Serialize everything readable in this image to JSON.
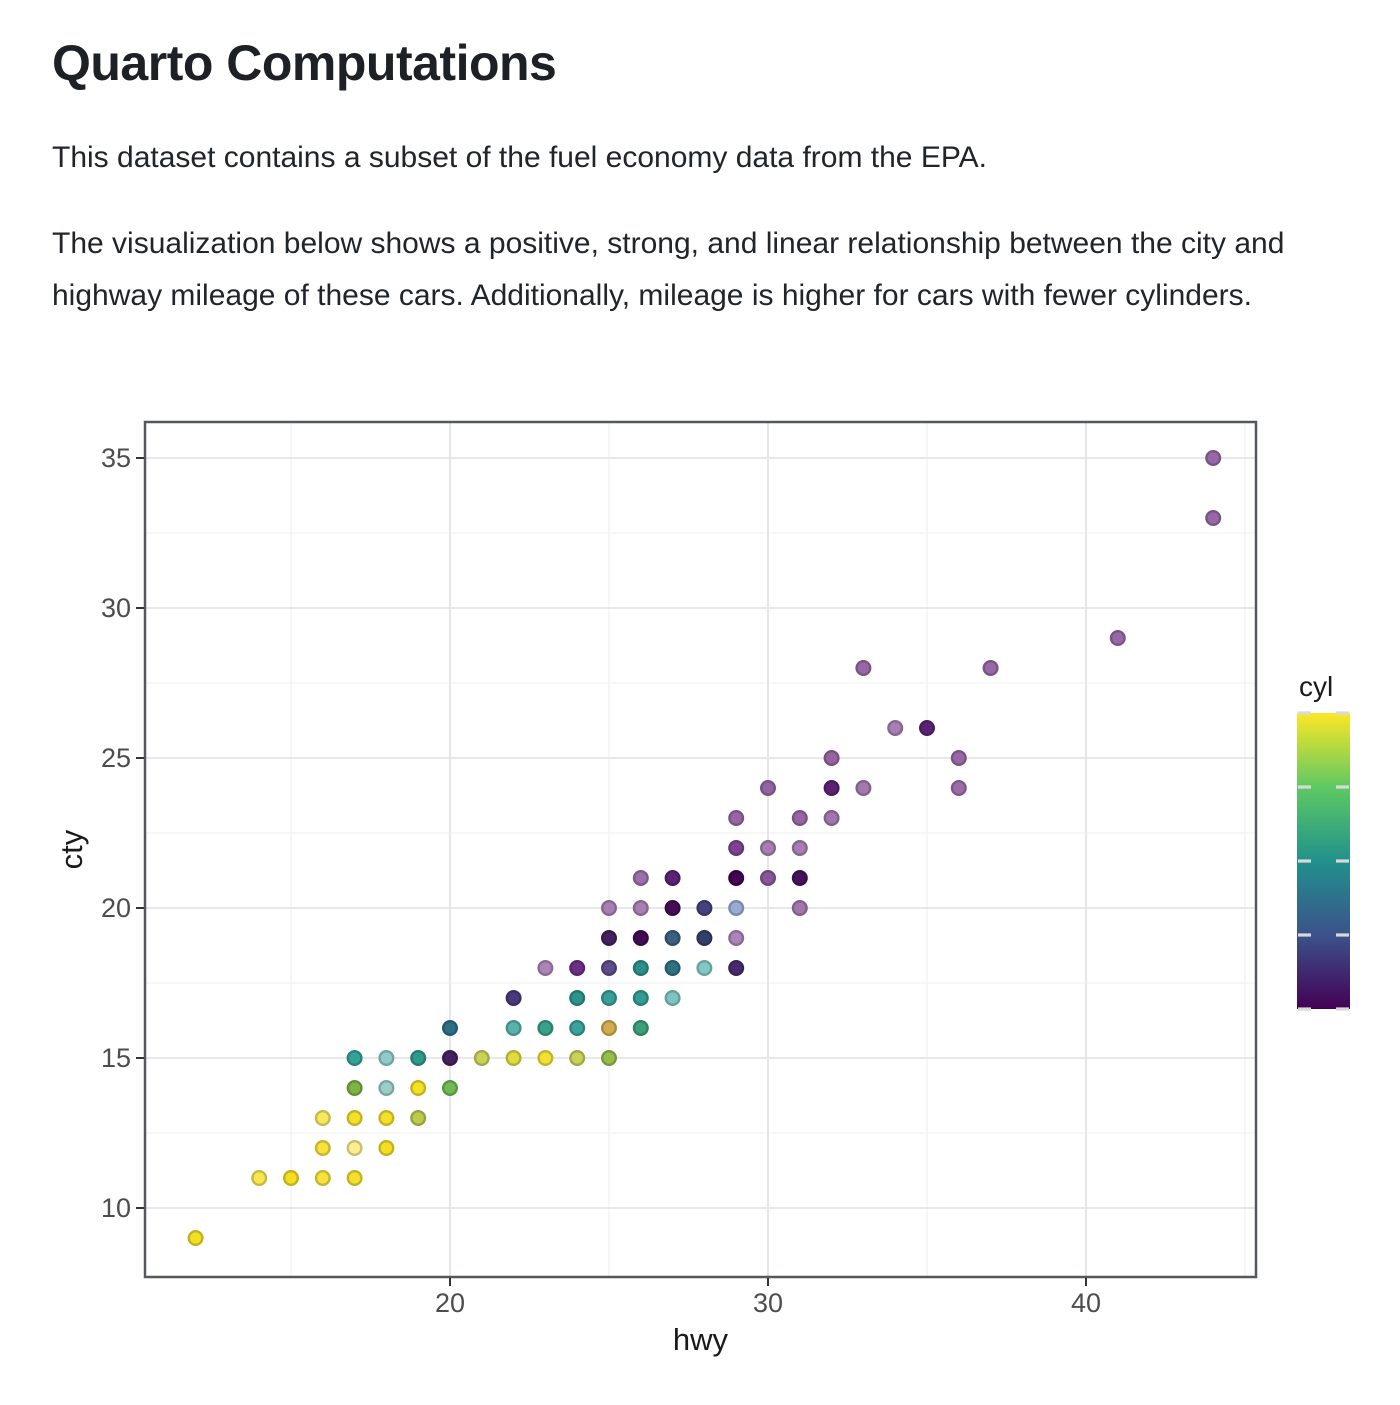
{
  "page": {
    "title": "Quarto Computations",
    "paragraph1": "This dataset contains a subset of the fuel economy data from the EPA.",
    "paragraph2": "The visualization below shows a positive, strong, and linear relationship between the city and highway mileage of these cars. Additionally, mileage is higher for cars with fewer cylinders."
  },
  "chart_data": {
    "type": "scatter",
    "xlabel": "hwy",
    "ylabel": "cty",
    "x_ticks": [
      20,
      30,
      40
    ],
    "x_minor_ticks": [
      15,
      25,
      35,
      45
    ],
    "y_ticks": [
      10,
      15,
      20,
      25,
      30,
      35
    ],
    "y_minor_ticks": [
      12.5,
      17.5,
      22.5,
      27.5,
      32.5
    ],
    "xlim": [
      10.4,
      45.3
    ],
    "ylim": [
      7.7,
      36.2
    ],
    "grid": "on",
    "legend": {
      "title": "cyl",
      "position": "right",
      "min": 4,
      "max": 8,
      "ticks": [
        4,
        5,
        6,
        7,
        8
      ],
      "gradient_top_to_bottom": [
        {
          "value": 8,
          "color": "#FDE725"
        },
        {
          "value": 7,
          "color": "#5EC962"
        },
        {
          "value": 6,
          "color": "#21918C"
        },
        {
          "value": 5,
          "color": "#3B528B"
        },
        {
          "value": 4,
          "color": "#440154"
        }
      ]
    },
    "points": [
      {
        "hwy": 12,
        "cty": 9,
        "c": "#F3DF24"
      },
      {
        "hwy": 14,
        "cty": 11,
        "c": "#F7E74F"
      },
      {
        "hwy": 15,
        "cty": 11,
        "c": "#F3DF1E"
      },
      {
        "hwy": 16,
        "cty": 11,
        "c": "#F5E33A"
      },
      {
        "hwy": 17,
        "cty": 11,
        "c": "#F4E02C"
      },
      {
        "hwy": 16,
        "cty": 12,
        "c": "#F5E33A"
      },
      {
        "hwy": 17,
        "cty": 12,
        "c": "#FAEF8C"
      },
      {
        "hwy": 18,
        "cty": 12,
        "c": "#F3DE24"
      },
      {
        "hwy": 16,
        "cty": 13,
        "c": "#F7E95E"
      },
      {
        "hwy": 17,
        "cty": 13,
        "c": "#F4E02C"
      },
      {
        "hwy": 18,
        "cty": 13,
        "c": "#F4E02C"
      },
      {
        "hwy": 19,
        "cty": 13,
        "c": "#BCCB4E"
      },
      {
        "hwy": 17,
        "cty": 14,
        "c": "#7DB342"
      },
      {
        "hwy": 18,
        "cty": 14,
        "c": "#99CFC9"
      },
      {
        "hwy": 19,
        "cty": 14,
        "c": "#F3DF24"
      },
      {
        "hwy": 20,
        "cty": 14,
        "c": "#6FBA52"
      },
      {
        "hwy": 17,
        "cty": 15,
        "c": "#35A29A"
      },
      {
        "hwy": 18,
        "cty": 15,
        "c": "#8FCCC9"
      },
      {
        "hwy": 19,
        "cty": 15,
        "c": "#2E998F"
      },
      {
        "hwy": 20,
        "cty": 15,
        "c": "#44215F"
      },
      {
        "hwy": 21,
        "cty": 15,
        "c": "#C8D356"
      },
      {
        "hwy": 22,
        "cty": 15,
        "c": "#E0DB3F"
      },
      {
        "hwy": 23,
        "cty": 15,
        "c": "#F2E135"
      },
      {
        "hwy": 24,
        "cty": 15,
        "c": "#C6D258"
      },
      {
        "hwy": 25,
        "cty": 15,
        "c": "#96BC4A"
      },
      {
        "hwy": 20,
        "cty": 16,
        "c": "#2D6D86"
      },
      {
        "hwy": 22,
        "cty": 16,
        "c": "#57B2AA"
      },
      {
        "hwy": 23,
        "cty": 16,
        "c": "#37A287"
      },
      {
        "hwy": 24,
        "cty": 16,
        "c": "#3AA39A"
      },
      {
        "hwy": 25,
        "cty": 16,
        "c": "#D4AC4E"
      },
      {
        "hwy": 26,
        "cty": 16,
        "c": "#3AA077"
      },
      {
        "hwy": 22,
        "cty": 17,
        "c": "#483A7A"
      },
      {
        "hwy": 24,
        "cty": 17,
        "c": "#2B948C"
      },
      {
        "hwy": 25,
        "cty": 17,
        "c": "#379F98"
      },
      {
        "hwy": 26,
        "cty": 17,
        "c": "#329C94"
      },
      {
        "hwy": 27,
        "cty": 17,
        "c": "#7EC5C0"
      },
      {
        "hwy": 23,
        "cty": 18,
        "c": "#AC84B8"
      },
      {
        "hwy": 24,
        "cty": 18,
        "c": "#6C3086"
      },
      {
        "hwy": 25,
        "cty": 18,
        "c": "#5F4C8A"
      },
      {
        "hwy": 26,
        "cty": 18,
        "c": "#2A918A"
      },
      {
        "hwy": 27,
        "cty": 18,
        "c": "#2F7083"
      },
      {
        "hwy": 28,
        "cty": 18,
        "c": "#84C8C3"
      },
      {
        "hwy": 29,
        "cty": 18,
        "c": "#462A6E"
      },
      {
        "hwy": 25,
        "cty": 19,
        "c": "#44215F"
      },
      {
        "hwy": 26,
        "cty": 19,
        "c": "#400C52"
      },
      {
        "hwy": 27,
        "cty": 19,
        "c": "#3C6080"
      },
      {
        "hwy": 28,
        "cty": 19,
        "c": "#344069"
      },
      {
        "hwy": 29,
        "cty": 19,
        "c": "#AB84B8"
      },
      {
        "hwy": 25,
        "cty": 20,
        "c": "#A77FB2"
      },
      {
        "hwy": 26,
        "cty": 20,
        "c": "#A77FB2"
      },
      {
        "hwy": 27,
        "cty": 20,
        "c": "#440D55"
      },
      {
        "hwy": 28,
        "cty": 20,
        "c": "#474180"
      },
      {
        "hwy": 29,
        "cty": 20,
        "c": "#97ABD4"
      },
      {
        "hwy": 31,
        "cty": 20,
        "c": "#A176AF"
      },
      {
        "hwy": 26,
        "cty": 21,
        "c": "#9A6FAA"
      },
      {
        "hwy": 27,
        "cty": 21,
        "c": "#5A2275"
      },
      {
        "hwy": 29,
        "cty": 21,
        "c": "#420351"
      },
      {
        "hwy": 30,
        "cty": 21,
        "c": "#885699"
      },
      {
        "hwy": 31,
        "cty": 21,
        "c": "#45105C"
      },
      {
        "hwy": 29,
        "cty": 22,
        "c": "#7E4294"
      },
      {
        "hwy": 30,
        "cty": 22,
        "c": "#A67EB1"
      },
      {
        "hwy": 31,
        "cty": 22,
        "c": "#A67EB1"
      },
      {
        "hwy": 29,
        "cty": 23,
        "c": "#9765A5"
      },
      {
        "hwy": 31,
        "cty": 23,
        "c": "#9765A5"
      },
      {
        "hwy": 32,
        "cty": 23,
        "c": "#A176AE"
      },
      {
        "hwy": 30,
        "cty": 24,
        "c": "#9264A4"
      },
      {
        "hwy": 32,
        "cty": 24,
        "c": "#5D2173"
      },
      {
        "hwy": 33,
        "cty": 24,
        "c": "#A478AF"
      },
      {
        "hwy": 36,
        "cty": 24,
        "c": "#9C6DA9"
      },
      {
        "hwy": 32,
        "cty": 25,
        "c": "#95649F"
      },
      {
        "hwy": 36,
        "cty": 25,
        "c": "#9868A6"
      },
      {
        "hwy": 34,
        "cty": 26,
        "c": "#A77FB3"
      },
      {
        "hwy": 35,
        "cty": 26,
        "c": "#5B2375"
      },
      {
        "hwy": 33,
        "cty": 28,
        "c": "#9768A5"
      },
      {
        "hwy": 37,
        "cty": 28,
        "c": "#9768A5"
      },
      {
        "hwy": 41,
        "cty": 29,
        "c": "#9768A5"
      },
      {
        "hwy": 44,
        "cty": 33,
        "c": "#9768A5"
      },
      {
        "hwy": 44,
        "cty": 35,
        "c": "#9768A5"
      }
    ]
  },
  "style": {
    "grid_major": "#E4E4E4",
    "grid_minor": "#F2F2F2",
    "panel_border": "#54585C",
    "tick_mark": "#333333",
    "tick_label": "#4D4D4D",
    "axis_title": "#1A1A1A",
    "legend_tick": "#D9D9D9"
  }
}
